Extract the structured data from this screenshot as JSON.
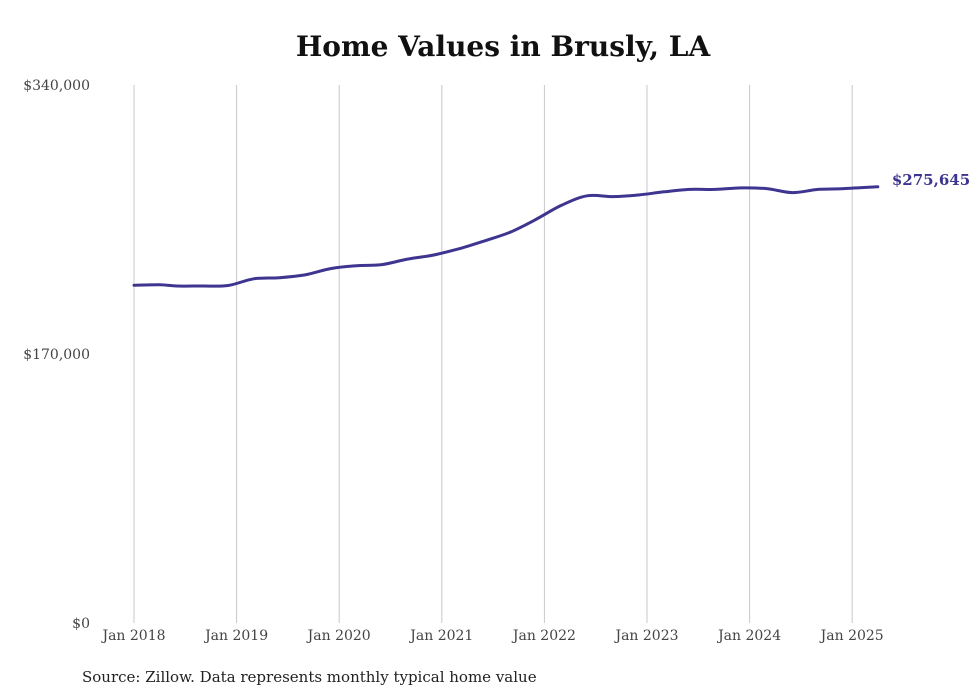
{
  "chart_data": {
    "type": "line",
    "title": "Home Values in Brusly, LA",
    "source": "Source: Zillow. Data represents monthly typical home value",
    "ylim": [
      0,
      340000
    ],
    "y_ticks": [
      {
        "value": 0,
        "label": "$0"
      },
      {
        "value": 170000,
        "label": "$170,000"
      },
      {
        "value": 340000,
        "label": "$340,000"
      }
    ],
    "x_ticks": [
      {
        "date": "2018-01",
        "label": "Jan 2018"
      },
      {
        "date": "2019-01",
        "label": "Jan 2019"
      },
      {
        "date": "2020-01",
        "label": "Jan 2020"
      },
      {
        "date": "2021-01",
        "label": "Jan 2021"
      },
      {
        "date": "2022-01",
        "label": "Jan 2022"
      },
      {
        "date": "2023-01",
        "label": "Jan 2023"
      },
      {
        "date": "2024-01",
        "label": "Jan 2024"
      },
      {
        "date": "2025-01",
        "label": "Jan 2025"
      }
    ],
    "grid": "vertical",
    "line_color": "#3d3590",
    "end_label": "$275,645",
    "series": [
      {
        "x": [
          "2018-01",
          "2018-04",
          "2018-06",
          "2018-09",
          "2018-12",
          "2019-03",
          "2019-06",
          "2019-09",
          "2019-12",
          "2020-03",
          "2020-06",
          "2020-09",
          "2020-12",
          "2021-03",
          "2021-06",
          "2021-09",
          "2021-12",
          "2022-03",
          "2022-06",
          "2022-09",
          "2022-12",
          "2023-03",
          "2023-06",
          "2023-09",
          "2023-12",
          "2024-03",
          "2024-06",
          "2024-09",
          "2024-12",
          "2025-04"
        ],
        "y": [
          213500,
          213800,
          213000,
          213000,
          213300,
          217500,
          218200,
          220000,
          224000,
          225800,
          226500,
          230000,
          232500,
          236500,
          241500,
          247000,
          255000,
          264000,
          270000,
          269500,
          270500,
          272500,
          274000,
          274000,
          275000,
          274500,
          272000,
          274000,
          274500,
          275645
        ]
      }
    ]
  }
}
